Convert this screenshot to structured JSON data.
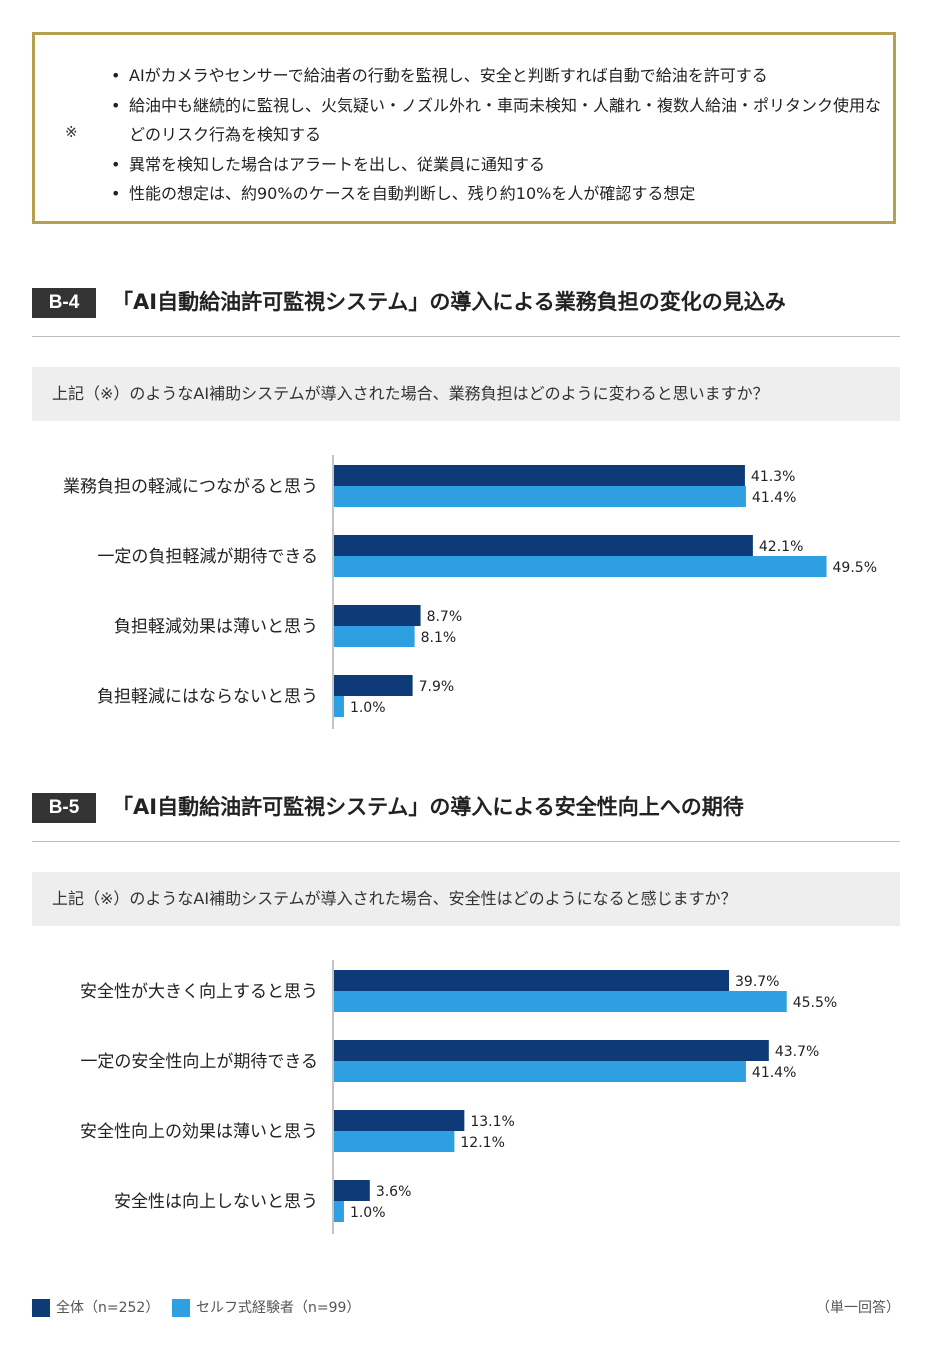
{
  "note": {
    "mark": "※",
    "items": [
      "AIがカメラやセンサーで給油者の行動を監視し、安全と判断すれば自動で給油を許可する",
      "給油中も継続的に監視し、火気疑い・ノズル外れ・車両未検知・人離れ・複数人給油・ポリタンク使用などのリスク行為を検知する",
      "異常を検知した場合はアラートを出し、従業員に通知する",
      "性能の想定は、約90%のケースを自動判断し、残り約10%を人が確認する想定"
    ]
  },
  "sections": [
    {
      "badge": "B-4",
      "title": "「AI自動給油許可監視システム」の導入による業務負担の変化の見込み",
      "question": "上記（※）のようなAI補助システムが導入された場合、業務負担はどのように変わると思いますか？"
    },
    {
      "badge": "B-5",
      "title": "「AI自動給油許可監視システム」の導入による安全性向上への期待",
      "question": "上記（※）のようなAI補助システムが導入された場合、安全性はどのようになると感じますか？"
    }
  ],
  "chart_data": [
    {
      "type": "bar",
      "orientation": "horizontal",
      "categories": [
        "業務負担の軽減につながると思う",
        "一定の負担軽減が期待できる",
        "負担軽減効果は薄いと思う",
        "負担軽減にはならないと思う"
      ],
      "series": [
        {
          "name": "全体（n=252）",
          "color": "#0f3a78",
          "values": [
            41.3,
            42.1,
            8.7,
            7.9
          ]
        },
        {
          "name": "セルフ式経験者（n=99）",
          "color": "#2e9fe0",
          "values": [
            41.4,
            49.5,
            8.1,
            1.0
          ]
        }
      ],
      "unit": "%"
    },
    {
      "type": "bar",
      "orientation": "horizontal",
      "categories": [
        "安全性が大きく向上すると思う",
        "一定の安全性向上が期待できる",
        "安全性向上の効果は薄いと思う",
        "安全性は向上しないと思う"
      ],
      "series": [
        {
          "name": "全体（n=252）",
          "color": "#0f3a78",
          "values": [
            39.7,
            43.7,
            13.1,
            3.6
          ]
        },
        {
          "name": "セルフ式経験者（n=99）",
          "color": "#2e9fe0",
          "values": [
            45.5,
            41.4,
            12.1,
            1.0
          ]
        }
      ],
      "unit": "%"
    }
  ],
  "legend": {
    "items": [
      {
        "label": "全体（n=252）",
        "color": "#0f3a78"
      },
      {
        "label": "セルフ式経験者（n=99）",
        "color": "#2e9fe0"
      }
    ],
    "answer_type": "（単一回答）"
  }
}
